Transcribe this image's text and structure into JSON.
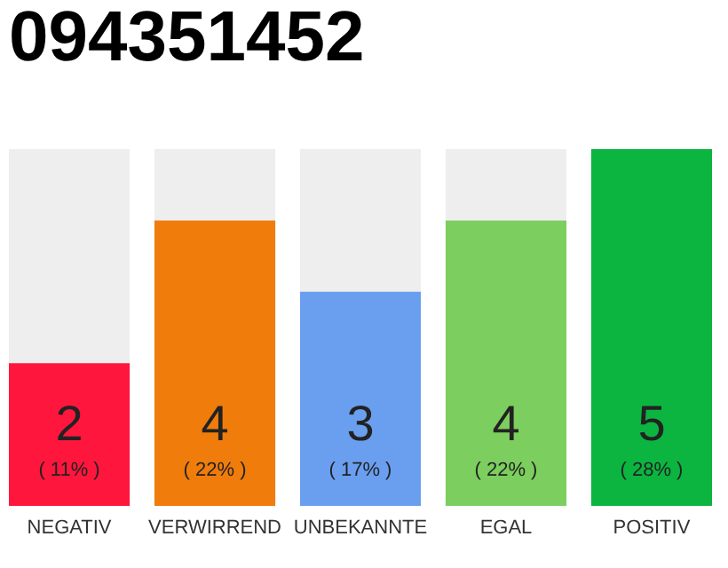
{
  "chart_data": {
    "type": "bar",
    "title": "094351452",
    "categories": [
      "NEGATIV",
      "VERWIRREND",
      "UNBEKANNTE",
      "EGAL",
      "POSITIV"
    ],
    "values": [
      2,
      4,
      3,
      4,
      5
    ],
    "colors": [
      "#fe163d",
      "#f07c0c",
      "#6a9ff0",
      "#7cce5e",
      "#0bb540"
    ],
    "ylim": [
      0,
      5
    ],
    "tick_labels": "x",
    "data_labels": true,
    "grid": false,
    "annotations": [
      "( 11% )",
      "( 22% )",
      "( 17% )",
      "( 22% )",
      "( 28% )"
    ]
  }
}
